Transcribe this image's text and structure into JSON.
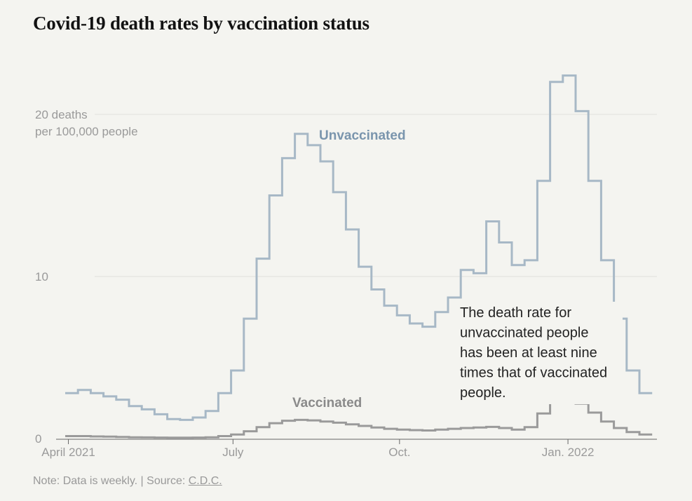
{
  "title": "Covid-19 death rates by vaccination status",
  "note": {
    "prefix": "Note: Data is weekly. | Source: ",
    "source": "C.D.C."
  },
  "annotation": [
    "The death rate for",
    "unvaccinated people",
    "has been at least nine",
    "times that of vaccinated",
    "people."
  ],
  "colors": {
    "unvaccinated": "#a7b8c6",
    "unvaccinated_label": "#7a95ad",
    "vaccinated": "#9a9a9a",
    "vaccinated_label": "#8a8a8a",
    "grid": "#e1e1dc",
    "axis": "#666666"
  },
  "chart_data": {
    "type": "line",
    "step": true,
    "x_start_label": "Week beginning 2021-03-29, weekly intervals",
    "y_ticks": [
      {
        "value": 0,
        "lines": [
          "0"
        ]
      },
      {
        "value": 10,
        "lines": [
          "10"
        ]
      },
      {
        "value": 20,
        "lines": [
          "20 deaths",
          "per 100,000 people"
        ]
      }
    ],
    "x_ticks": [
      {
        "week": 0.25,
        "label": "April 2021"
      },
      {
        "week": 13.15,
        "label": "July"
      },
      {
        "week": 26.2,
        "label": "Oct."
      },
      {
        "week": 39.4,
        "label": "Jan. 2022"
      }
    ],
    "ylim": [
      0,
      23
    ],
    "series": [
      {
        "name": "Unvaccinated",
        "values": [
          2.8,
          3.0,
          2.8,
          2.6,
          2.4,
          2.0,
          1.8,
          1.5,
          1.2,
          1.15,
          1.3,
          1.7,
          2.8,
          4.2,
          7.4,
          11.1,
          15.0,
          17.3,
          18.8,
          18.1,
          17.1,
          15.2,
          12.9,
          10.6,
          9.2,
          8.2,
          7.6,
          7.1,
          6.9,
          7.8,
          8.7,
          10.4,
          10.2,
          13.4,
          12.1,
          10.7,
          11.0,
          15.9,
          22.0,
          22.4,
          20.2,
          15.9,
          11.0,
          7.4,
          4.2,
          2.8
        ],
        "label": "Unvaccinated"
      },
      {
        "name": "Vaccinated",
        "values": [
          0.15,
          0.15,
          0.13,
          0.12,
          0.1,
          0.08,
          0.07,
          0.06,
          0.05,
          0.05,
          0.06,
          0.08,
          0.15,
          0.25,
          0.45,
          0.7,
          0.95,
          1.1,
          1.15,
          1.12,
          1.05,
          0.98,
          0.88,
          0.78,
          0.68,
          0.6,
          0.55,
          0.52,
          0.5,
          0.55,
          0.6,
          0.65,
          0.68,
          0.72,
          0.65,
          0.55,
          0.7,
          1.55,
          2.35,
          2.4,
          2.15,
          1.6,
          1.05,
          0.65,
          0.4,
          0.25
        ],
        "label": "Vaccinated"
      }
    ]
  }
}
